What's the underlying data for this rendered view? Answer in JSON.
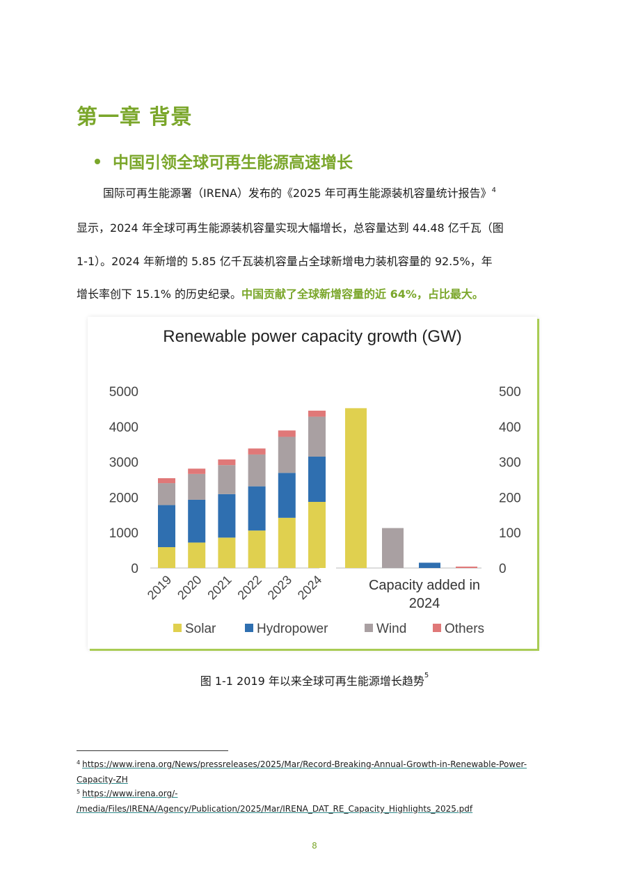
{
  "chapter_title": "第一章 背景",
  "section_heading": "中国引领全球可再生能源高速增长",
  "paragraph": {
    "line1": "国际可再生能源署（IRENA）发布的《2025 年可再生能源装机容量统计报告》",
    "line1_sup": "4",
    "line2": "显示，2024 年全球可再生能源装机容量实现大幅增长，总容量达到 44.48 亿千瓦（图",
    "line3": "1-1）。2024 年新增的 5.85 亿千瓦装机容量占全球新增电力装机容量的 92.5%，年",
    "line4_plain": "增长率创下 15.1% 的历史纪录。",
    "line4_highlight": "中国贡献了全球新增容量的近 64%，占比最大。"
  },
  "colors": {
    "accent": "#7aa62a",
    "solar": "#e0d04f",
    "hydropower": "#2f6fb0",
    "wind": "#a9a0a2",
    "others": "#e07878"
  },
  "chart_data": {
    "type": "bar",
    "title": "Renewable power capacity growth (GW)",
    "left_panel": {
      "categories": [
        "2019",
        "2020",
        "2021",
        "2022",
        "2023",
        "2024"
      ],
      "ylim": [
        0,
        5000
      ],
      "yticks": [
        "0",
        "1000",
        "2000",
        "3000",
        "4000",
        "5000"
      ],
      "stacked": true,
      "series": [
        {
          "name": "Solar",
          "values": [
            590,
            720,
            860,
            1060,
            1420,
            1870
          ]
        },
        {
          "name": "Hydropower",
          "values": [
            1190,
            1210,
            1230,
            1250,
            1270,
            1280
          ]
        },
        {
          "name": "Wind",
          "values": [
            620,
            730,
            820,
            900,
            1020,
            1130
          ]
        },
        {
          "name": "Others",
          "values": [
            140,
            150,
            160,
            170,
            180,
            170
          ]
        }
      ]
    },
    "right_panel": {
      "xlabel": "Capacity added in 2024",
      "ylim": [
        0,
        500
      ],
      "yticks": [
        "0",
        "100",
        "200",
        "300",
        "400",
        "500"
      ],
      "series": [
        {
          "name": "Solar",
          "value": 452
        },
        {
          "name": "Wind",
          "value": 113
        },
        {
          "name": "Hydropower",
          "value": 15
        },
        {
          "name": "Others",
          "value": 4
        }
      ]
    },
    "legend": [
      "Solar",
      "Hydropower",
      "Wind",
      "Others"
    ],
    "legend_position": "bottom",
    "grid": false
  },
  "caption": {
    "text": "图 1-1 2019 年以来全球可再生能源增长趋势",
    "sup": "5"
  },
  "footnotes": [
    {
      "num": "4",
      "line1": "https://www.irena.org/News/pressreleases/2025/Mar/Record-Breaking-Annual-Growth-in-Renewable-Power-",
      "line2": "Capacity-ZH"
    },
    {
      "num": "5",
      "line1": "https://www.irena.org/-",
      "line2": "/media/Files/IRENA/Agency/Publication/2025/Mar/IRENA_DAT_RE_Capacity_Highlights_2025.pdf"
    }
  ],
  "page_number": "8"
}
